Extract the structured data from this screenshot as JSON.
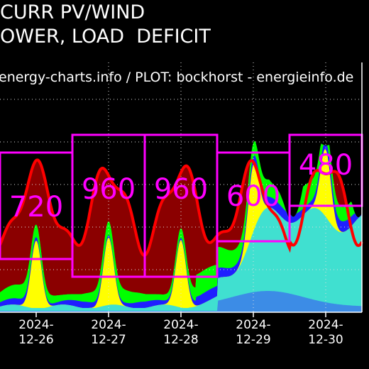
{
  "title_lines": [
    "CURR PV/WIND",
    "OWER, LOAD  DEFICIT"
  ],
  "chart_data": {
    "type": "area",
    "source_note": "energy-charts.info / PLOT: bockhorst - energieinfo.de",
    "x_ticks": [
      {
        "line1": "2024-",
        "line2": "12-26"
      },
      {
        "line1": "2024-",
        "line2": "12-27"
      },
      {
        "line1": "2024-",
        "line2": "12-28"
      },
      {
        "line1": "2024-",
        "line2": "12-29"
      },
      {
        "line1": "2024-",
        "line2": "12-30"
      }
    ],
    "x_range_days": [
      0,
      5
    ],
    "deficit_boxes": [
      {
        "label": "720",
        "day_start": 0.0,
        "day_end": 1.0
      },
      {
        "label": "960",
        "day_start": 1.0,
        "day_end": 2.0
      },
      {
        "label": "960",
        "day_start": 2.0,
        "day_end": 3.0
      },
      {
        "label": "600",
        "day_start": 3.0,
        "day_end": 4.0
      },
      {
        "label": "480",
        "day_start": 4.0,
        "day_end": 5.0
      }
    ],
    "colors": {
      "background_fill": "#8B0000",
      "load_line": "#FF0000",
      "pv": "#FFFF00",
      "wind_offshore": "#1F1FFF",
      "wind_onshore": "#40E0D0",
      "other": "#00FF00",
      "base": "#3C8CE6",
      "deficit_box": "#FF00FF"
    }
  }
}
